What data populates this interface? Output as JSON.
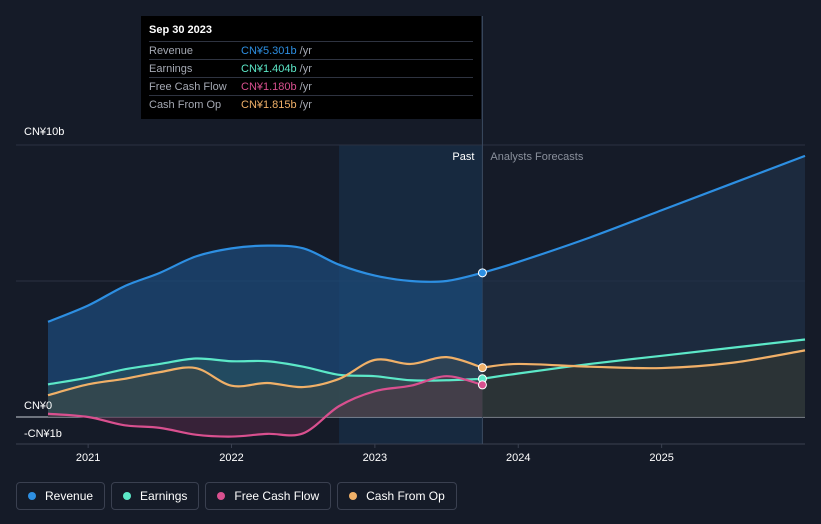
{
  "tooltip": {
    "date": "Sep 30 2023",
    "unit": "/yr",
    "rows": [
      {
        "label": "Revenue",
        "value": "CN¥5.301b",
        "color": "#2d8fe2"
      },
      {
        "label": "Earnings",
        "value": "CN¥1.404b",
        "color": "#5ce8c8"
      },
      {
        "label": "Free Cash Flow",
        "value": "CN¥1.180b",
        "color": "#d9508f"
      },
      {
        "label": "Cash From Op",
        "value": "CN¥1.815b",
        "color": "#f0b068"
      }
    ]
  },
  "legend": [
    {
      "label": "Revenue",
      "color": "#2d8fe2"
    },
    {
      "label": "Earnings",
      "color": "#5ce8c8"
    },
    {
      "label": "Free Cash Flow",
      "color": "#d9508f"
    },
    {
      "label": "Cash From Op",
      "color": "#f0b068"
    }
  ],
  "chart_data": {
    "type": "line",
    "title": "",
    "xlabel": "",
    "ylabel": "",
    "ylim": [
      -1,
      10
    ],
    "xlim": [
      2020.72,
      2026.0
    ],
    "y_labels": [
      {
        "label": "CN¥10b",
        "value": 10
      },
      {
        "label": "CN¥0",
        "value": 0
      },
      {
        "label": "-CN¥1b",
        "value": -1
      }
    ],
    "x_ticks": [
      {
        "label": "2021",
        "value": 2021.0
      },
      {
        "label": "2022",
        "value": 2022.0
      },
      {
        "label": "2023",
        "value": 2023.0
      },
      {
        "label": "2024",
        "value": 2024.0
      },
      {
        "label": "2025",
        "value": 2025.0
      }
    ],
    "past_label": "Past",
    "forecast_label": "Analysts Forecasts",
    "past_end": 2023.75,
    "highlight_start": 2022.75,
    "series": [
      {
        "name": "Revenue",
        "color": "#2d8fe2",
        "points": [
          [
            2020.72,
            3.5
          ],
          [
            2021.0,
            4.1
          ],
          [
            2021.25,
            4.8
          ],
          [
            2021.5,
            5.3
          ],
          [
            2021.75,
            5.9
          ],
          [
            2022.0,
            6.2
          ],
          [
            2022.25,
            6.3
          ],
          [
            2022.5,
            6.2
          ],
          [
            2022.75,
            5.6
          ],
          [
            2023.0,
            5.2
          ],
          [
            2023.25,
            5.0
          ],
          [
            2023.5,
            5.0
          ],
          [
            2023.75,
            5.301
          ]
        ],
        "forecast": [
          [
            2023.75,
            5.301
          ],
          [
            2024.0,
            5.7
          ],
          [
            2024.5,
            6.6
          ],
          [
            2025.0,
            7.6
          ],
          [
            2025.5,
            8.6
          ],
          [
            2026.0,
            9.6
          ]
        ]
      },
      {
        "name": "Earnings",
        "color": "#5ce8c8",
        "points": [
          [
            2020.72,
            1.2
          ],
          [
            2021.0,
            1.45
          ],
          [
            2021.25,
            1.75
          ],
          [
            2021.5,
            1.95
          ],
          [
            2021.75,
            2.15
          ],
          [
            2022.0,
            2.05
          ],
          [
            2022.25,
            2.05
          ],
          [
            2022.5,
            1.85
          ],
          [
            2022.75,
            1.55
          ],
          [
            2023.0,
            1.5
          ],
          [
            2023.25,
            1.35
          ],
          [
            2023.5,
            1.35
          ],
          [
            2023.75,
            1.404
          ]
        ],
        "forecast": [
          [
            2023.75,
            1.404
          ],
          [
            2024.0,
            1.6
          ],
          [
            2024.5,
            1.95
          ],
          [
            2025.0,
            2.25
          ],
          [
            2025.5,
            2.55
          ],
          [
            2026.0,
            2.85
          ]
        ]
      },
      {
        "name": "Free Cash Flow",
        "color": "#d9508f",
        "points": [
          [
            2020.72,
            0.12
          ],
          [
            2021.0,
            0.0
          ],
          [
            2021.25,
            -0.3
          ],
          [
            2021.5,
            -0.4
          ],
          [
            2021.75,
            -0.65
          ],
          [
            2022.0,
            -0.72
          ],
          [
            2022.25,
            -0.62
          ],
          [
            2022.5,
            -0.6
          ],
          [
            2022.75,
            0.4
          ],
          [
            2023.0,
            0.95
          ],
          [
            2023.25,
            1.15
          ],
          [
            2023.5,
            1.5
          ],
          [
            2023.75,
            1.18
          ]
        ]
      },
      {
        "name": "Cash From Op",
        "color": "#f0b068",
        "points": [
          [
            2020.72,
            0.8
          ],
          [
            2021.0,
            1.2
          ],
          [
            2021.25,
            1.4
          ],
          [
            2021.5,
            1.65
          ],
          [
            2021.75,
            1.8
          ],
          [
            2022.0,
            1.15
          ],
          [
            2022.25,
            1.25
          ],
          [
            2022.5,
            1.1
          ],
          [
            2022.75,
            1.4
          ],
          [
            2023.0,
            2.1
          ],
          [
            2023.25,
            1.95
          ],
          [
            2023.5,
            2.2
          ],
          [
            2023.75,
            1.815
          ]
        ],
        "forecast": [
          [
            2023.75,
            1.815
          ],
          [
            2024.0,
            1.95
          ],
          [
            2024.5,
            1.85
          ],
          [
            2025.0,
            1.8
          ],
          [
            2025.5,
            2.0
          ],
          [
            2026.0,
            2.45
          ]
        ]
      }
    ]
  }
}
